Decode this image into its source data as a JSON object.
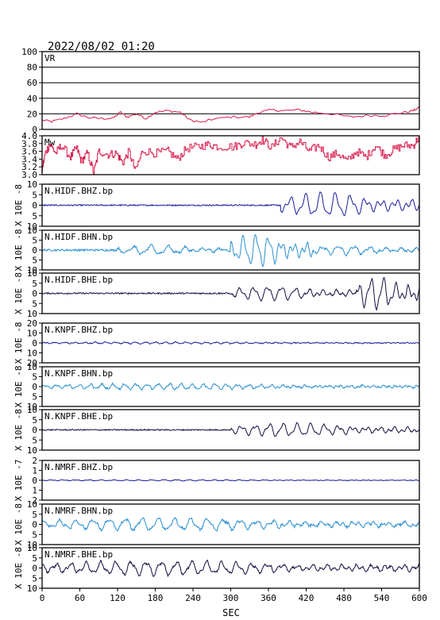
{
  "header": {
    "datetime": "2022/08/02 01:20"
  },
  "chart_data": {
    "type": "line",
    "xlabel": "SEC",
    "xlim": [
      0,
      600
    ],
    "xticks": [
      0,
      60,
      120,
      180,
      240,
      300,
      360,
      420,
      480,
      540,
      600
    ],
    "panels": [
      {
        "id": "vr",
        "label": "VR",
        "ylim": [
          0,
          100
        ],
        "yticks": [
          0,
          20,
          40,
          60,
          80,
          100
        ],
        "grid": true,
        "color": "#d8194a",
        "series": [
          [
            0,
            12
          ],
          [
            15,
            10
          ],
          [
            35,
            14
          ],
          [
            55,
            20
          ],
          [
            75,
            15
          ],
          [
            95,
            14
          ],
          [
            112,
            14
          ],
          [
            125,
            22
          ],
          [
            135,
            16
          ],
          [
            150,
            20
          ],
          [
            165,
            14
          ],
          [
            180,
            22
          ],
          [
            200,
            24
          ],
          [
            220,
            22
          ],
          [
            235,
            12
          ],
          [
            255,
            9
          ],
          [
            270,
            13
          ],
          [
            300,
            16
          ],
          [
            330,
            16
          ],
          [
            345,
            22
          ],
          [
            365,
            25
          ],
          [
            385,
            24
          ],
          [
            410,
            25
          ],
          [
            430,
            22
          ],
          [
            460,
            20
          ],
          [
            490,
            16
          ],
          [
            520,
            18
          ],
          [
            545,
            18
          ],
          [
            570,
            21
          ],
          [
            590,
            24
          ],
          [
            600,
            28
          ]
        ]
      },
      {
        "id": "mw",
        "label": "Mw",
        "ylim": [
          3.0,
          4.0
        ],
        "yticks": [
          3.0,
          3.2,
          3.4,
          3.6,
          3.8,
          4.0
        ],
        "grid": false,
        "color": "#d8194a",
        "series": [
          [
            0,
            3.15
          ],
          [
            5,
            3.55
          ],
          [
            12,
            3.78
          ],
          [
            22,
            3.55
          ],
          [
            30,
            3.75
          ],
          [
            45,
            3.45
          ],
          [
            55,
            3.7
          ],
          [
            62,
            3.35
          ],
          [
            72,
            3.55
          ],
          [
            82,
            3.05
          ],
          [
            90,
            3.6
          ],
          [
            105,
            3.52
          ],
          [
            118,
            3.55
          ],
          [
            128,
            3.3
          ],
          [
            138,
            3.6
          ],
          [
            148,
            3.1
          ],
          [
            160,
            3.62
          ],
          [
            180,
            3.55
          ],
          [
            200,
            3.6
          ],
          [
            215,
            3.4
          ],
          [
            230,
            3.68
          ],
          [
            250,
            3.72
          ],
          [
            265,
            3.78
          ],
          [
            280,
            3.72
          ],
          [
            305,
            3.72
          ],
          [
            320,
            3.82
          ],
          [
            340,
            3.78
          ],
          [
            350,
            3.9
          ],
          [
            365,
            3.7
          ],
          [
            380,
            3.95
          ],
          [
            395,
            3.7
          ],
          [
            410,
            3.85
          ],
          [
            425,
            3.6
          ],
          [
            440,
            3.75
          ],
          [
            455,
            3.45
          ],
          [
            470,
            3.55
          ],
          [
            485,
            3.35
          ],
          [
            500,
            3.6
          ],
          [
            515,
            3.45
          ],
          [
            530,
            3.75
          ],
          [
            545,
            3.5
          ],
          [
            560,
            3.65
          ],
          [
            575,
            3.75
          ],
          [
            590,
            3.75
          ],
          [
            600,
            3.98
          ]
        ]
      },
      {
        "id": "hidf-bhz",
        "label": "N.HIDF.BHZ.bp",
        "ylim": [
          -10,
          10
        ],
        "yticks": [
          -10,
          -5,
          0,
          5,
          10
        ],
        "scale_label": "X 10E -8",
        "color": "#1a1aa0",
        "wave": {
          "noise": 0.6,
          "bursts": [
            {
              "start": 380,
              "end": 600,
              "amp": 5,
              "period": 24
            }
          ]
        }
      },
      {
        "id": "hidf-bhn",
        "label": "N.HIDF.BHN.bp",
        "ylim": [
          -10,
          10
        ],
        "yticks": [
          -10,
          -5,
          0,
          5,
          10
        ],
        "scale_label": "X 10E -8",
        "color": "#2a8fd0",
        "wave": {
          "noise": 1.0,
          "bursts": [
            {
              "start": 120,
              "end": 300,
              "amp": 2,
              "period": 28
            },
            {
              "start": 300,
              "end": 430,
              "amp": 7,
              "period": 20
            },
            {
              "start": 430,
              "end": 600,
              "amp": 2,
              "period": 25
            }
          ]
        }
      },
      {
        "id": "hidf-bhe",
        "label": "N.HIDF.BHE.bp",
        "ylim": [
          -10,
          10
        ],
        "yticks": [
          -10,
          -5,
          0,
          5,
          10
        ],
        "scale_label": "X 10E -8",
        "color": "#101040",
        "wave": {
          "noise": 0.7,
          "bursts": [
            {
              "start": 300,
              "end": 500,
              "amp": 3,
              "period": 22
            },
            {
              "start": 500,
              "end": 600,
              "amp": 7,
              "period": 20
            }
          ]
        }
      },
      {
        "id": "knpf-bhz",
        "label": "N.KNPF.BHZ.bp",
        "ylim": [
          -20,
          20
        ],
        "yticks": [
          -20,
          -10,
          0,
          10,
          20
        ],
        "scale_label": "X 10E -8",
        "color": "#1a1aa0",
        "wave": {
          "noise": 0.8,
          "bursts": [
            {
              "start": 0,
              "end": 600,
              "amp": 0.8,
              "period": 16
            }
          ]
        }
      },
      {
        "id": "knpf-bhn",
        "label": "N.KNPF.BHN.bp",
        "ylim": [
          -10,
          10
        ],
        "yticks": [
          -10,
          -5,
          0,
          5,
          10
        ],
        "scale_label": "X 10E -8",
        "color": "#2a8fd0",
        "wave": {
          "noise": 0.8,
          "bursts": [
            {
              "start": 0,
              "end": 600,
              "amp": 1.3,
              "period": 18
            }
          ]
        }
      },
      {
        "id": "knpf-bhe",
        "label": "N.KNPF.BHE.bp",
        "ylim": [
          -10,
          10
        ],
        "yticks": [
          -10,
          -5,
          0,
          5,
          10
        ],
        "scale_label": "X 10E -8",
        "color": "#101040",
        "wave": {
          "noise": 0.6,
          "bursts": [
            {
              "start": 300,
              "end": 600,
              "amp": 2.8,
              "period": 22
            }
          ]
        }
      },
      {
        "id": "nmrf-bhz",
        "label": "N.NMRF.BHZ.bp",
        "ylim": [
          -2,
          2
        ],
        "yticks": [
          -2,
          -1,
          0,
          1,
          2
        ],
        "scale_label": "X 10E -7",
        "color": "#1a1aa0",
        "wave": {
          "noise": 0.05,
          "bursts": [
            {
              "start": 0,
              "end": 600,
              "amp": 0.05,
              "period": 20
            }
          ]
        }
      },
      {
        "id": "nmrf-bhn",
        "label": "N.NMRF.BHN.bp",
        "ylim": [
          -10,
          10
        ],
        "yticks": [
          -10,
          -5,
          0,
          5,
          10
        ],
        "scale_label": "X 10E -8",
        "color": "#2a8fd0",
        "wave": {
          "noise": 1.2,
          "bursts": [
            {
              "start": 0,
              "end": 600,
              "amp": 2.6,
              "period": 26
            }
          ]
        }
      },
      {
        "id": "nmrf-bhe",
        "label": "N.NMRF.BHE.bp",
        "ylim": [
          -10,
          10
        ],
        "yticks": [
          -10,
          -5,
          0,
          5,
          10
        ],
        "scale_label": "X 10E -8",
        "color": "#101040",
        "wave": {
          "noise": 1.0,
          "bursts": [
            {
              "start": 0,
              "end": 600,
              "amp": 3,
              "period": 24
            }
          ]
        }
      }
    ]
  }
}
